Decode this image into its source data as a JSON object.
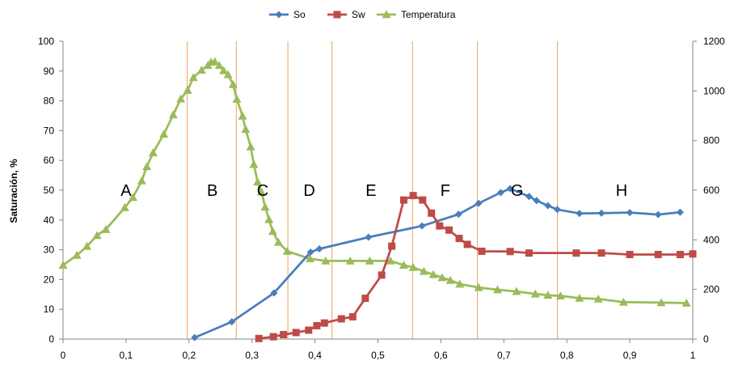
{
  "chart_data": {
    "type": "line",
    "title": "",
    "xlabel": "",
    "ylabel": "Saturación, %",
    "y2label": "",
    "xlim": [
      0,
      1
    ],
    "ylim": [
      0,
      100
    ],
    "y2lim": [
      0,
      1200
    ],
    "x_ticks": [
      "0",
      "0,1",
      "0,2",
      "0,3",
      "0,4",
      "0,5",
      "0,6",
      "0,7",
      "0,8",
      "0,9",
      "1"
    ],
    "y_ticks": [
      "0",
      "10",
      "20",
      "30",
      "40",
      "50",
      "60",
      "70",
      "80",
      "90",
      "100"
    ],
    "y2_ticks": [
      "0",
      "200",
      "400",
      "600",
      "800",
      "1000",
      "1200"
    ],
    "grid": false,
    "legend_position": "top",
    "zone_boundaries": [
      0.197,
      0.275,
      0.357,
      0.427,
      0.555,
      0.658,
      0.785
    ],
    "zones": [
      {
        "label": "A",
        "x": 0.1,
        "y": 50
      },
      {
        "label": "B",
        "x": 0.237,
        "y": 50
      },
      {
        "label": "C",
        "x": 0.317,
        "y": 50
      },
      {
        "label": "D",
        "x": 0.391,
        "y": 50
      },
      {
        "label": "E",
        "x": 0.489,
        "y": 50
      },
      {
        "label": "F",
        "x": 0.607,
        "y": 50
      },
      {
        "label": "G",
        "x": 0.721,
        "y": 50
      },
      {
        "label": "H",
        "x": 0.887,
        "y": 50
      }
    ],
    "series": [
      {
        "name": "So",
        "color": "#4a7ebb",
        "marker": "diamond",
        "axis": "left",
        "x": [
          0.209,
          0.268,
          0.335,
          0.393,
          0.407,
          0.485,
          0.57,
          0.628,
          0.66,
          0.695,
          0.71,
          0.74,
          0.752,
          0.77,
          0.785,
          0.82,
          0.855,
          0.9,
          0.945,
          0.98
        ],
        "y": [
          0.5,
          5.8,
          15.5,
          29.2,
          30.3,
          34.2,
          38.0,
          41.9,
          45.6,
          49.2,
          50.5,
          47.9,
          46.5,
          44.8,
          43.5,
          42.2,
          42.3,
          42.5,
          41.8,
          42.6
        ]
      },
      {
        "name": "Sw",
        "color": "#be4b48",
        "marker": "square",
        "axis": "left",
        "x": [
          0.311,
          0.334,
          0.35,
          0.37,
          0.39,
          0.403,
          0.415,
          0.442,
          0.46,
          0.48,
          0.506,
          0.522,
          0.541,
          0.556,
          0.571,
          0.585,
          0.598,
          0.613,
          0.629,
          0.642,
          0.665,
          0.71,
          0.74,
          0.815,
          0.855,
          0.9,
          0.945,
          0.98,
          1.0
        ],
        "y": [
          0.2,
          0.8,
          1.5,
          2.2,
          3.0,
          4.5,
          5.4,
          6.8,
          7.5,
          13.7,
          21.5,
          31.2,
          46.7,
          48.2,
          46.7,
          42.3,
          38.0,
          36.6,
          33.8,
          31.8,
          29.5,
          29.4,
          28.9,
          28.9,
          28.9,
          28.4,
          28.4,
          28.4,
          28.6
        ]
      },
      {
        "name": "Temperatura",
        "color": "#9bbb59",
        "marker": "triangle",
        "axis": "right",
        "x": [
          0.0,
          0.022,
          0.038,
          0.054,
          0.068,
          0.098,
          0.111,
          0.125,
          0.133,
          0.143,
          0.16,
          0.175,
          0.187,
          0.198,
          0.207,
          0.22,
          0.23,
          0.235,
          0.241,
          0.248,
          0.255,
          0.262,
          0.27,
          0.276,
          0.285,
          0.29,
          0.298,
          0.303,
          0.309,
          0.315,
          0.321,
          0.327,
          0.333,
          0.342,
          0.356,
          0.392,
          0.417,
          0.456,
          0.487,
          0.52,
          0.541,
          0.556,
          0.573,
          0.588,
          0.602,
          0.615,
          0.63,
          0.66,
          0.69,
          0.72,
          0.75,
          0.77,
          0.79,
          0.82,
          0.85,
          0.89,
          0.95,
          0.99
        ],
        "y": [
          298,
          338,
          374,
          418,
          442,
          530,
          571,
          638,
          695,
          751,
          826,
          904,
          968,
          1003,
          1054,
          1084,
          1103,
          1116,
          1118,
          1103,
          1082,
          1066,
          1026,
          967,
          899,
          845,
          775,
          704,
          633,
          593,
          532,
          482,
          434,
          390,
          354,
          324,
          315,
          315,
          315,
          315,
          298,
          289,
          273,
          260,
          248,
          237,
          222,
          208,
          199,
          192,
          182,
          177,
          174,
          165,
          162,
          149,
          147,
          145
        ]
      }
    ]
  }
}
